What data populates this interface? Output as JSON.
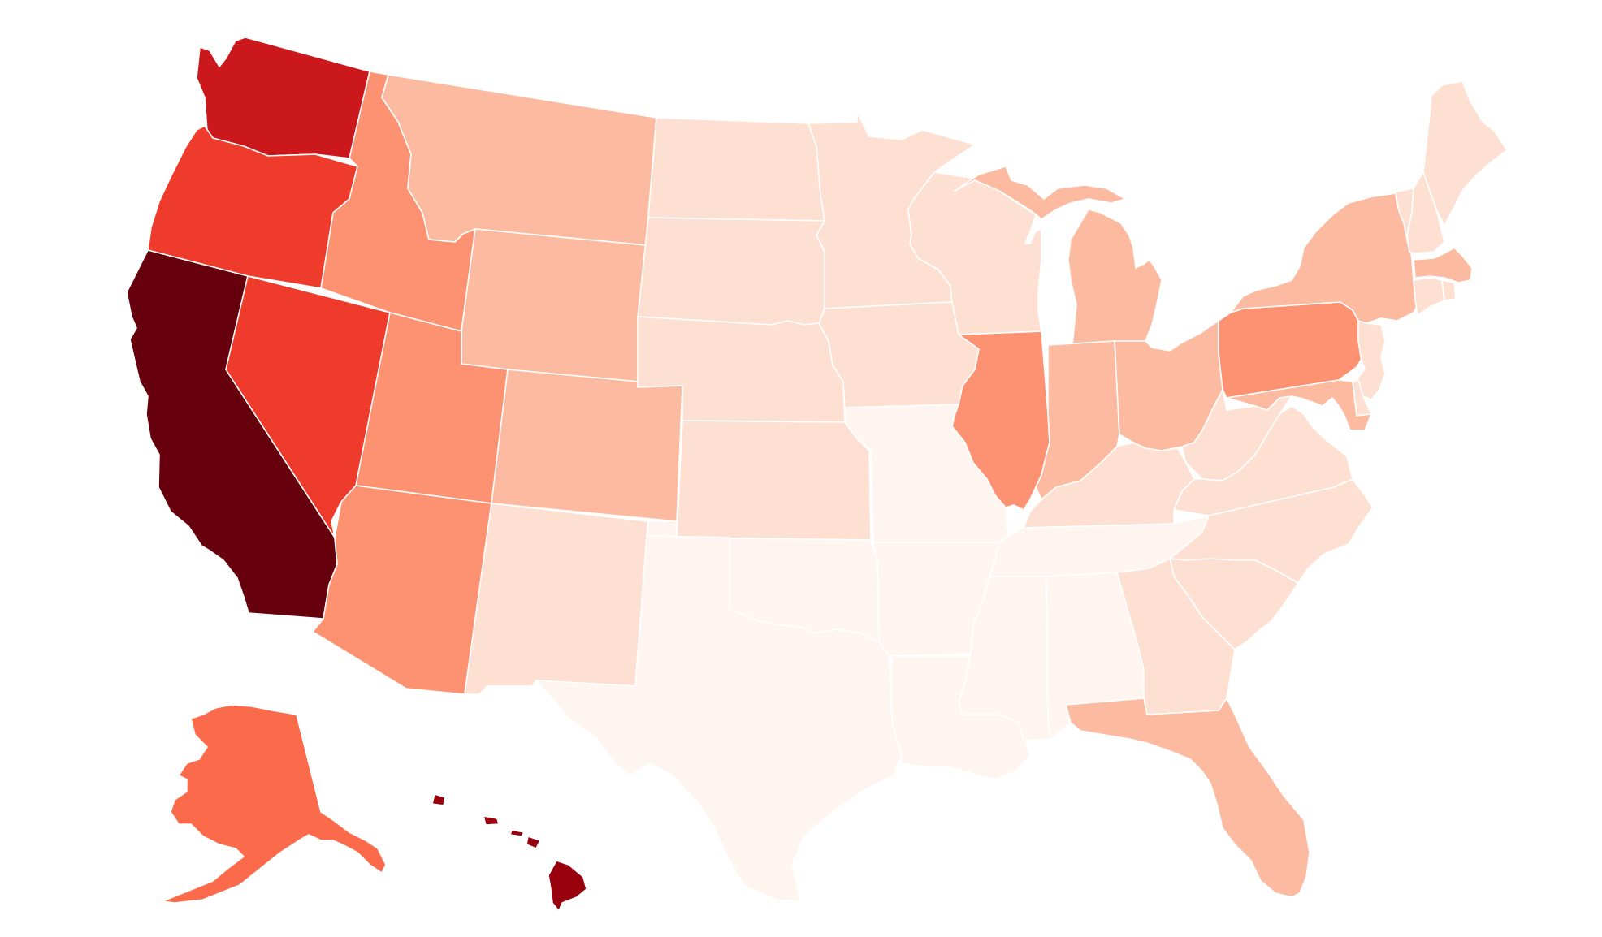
{
  "map": {
    "type": "choropleth",
    "region": "United States",
    "color_scale": [
      "#fff5f0",
      "#fee0d2",
      "#fcbba1",
      "#fc9272",
      "#fb6a4a",
      "#ef3b2c",
      "#cb181d",
      "#99000d",
      "#67000d"
    ],
    "states": [
      {
        "id": "CA",
        "level": 8
      },
      {
        "id": "HI",
        "level": 7
      },
      {
        "id": "WA",
        "level": 6
      },
      {
        "id": "OR",
        "level": 5
      },
      {
        "id": "NV",
        "level": 5
      },
      {
        "id": "AK",
        "level": 4
      },
      {
        "id": "IL",
        "level": 3
      },
      {
        "id": "PA",
        "level": 3
      },
      {
        "id": "ID",
        "level": 3
      },
      {
        "id": "UT",
        "level": 3
      },
      {
        "id": "AZ",
        "level": 3
      },
      {
        "id": "MT",
        "level": 2
      },
      {
        "id": "WY",
        "level": 2
      },
      {
        "id": "CO",
        "level": 2
      },
      {
        "id": "MI",
        "level": 2
      },
      {
        "id": "IN",
        "level": 2
      },
      {
        "id": "OH",
        "level": 2
      },
      {
        "id": "FL",
        "level": 2
      },
      {
        "id": "NY",
        "level": 2
      },
      {
        "id": "MD",
        "level": 2
      },
      {
        "id": "MA",
        "level": 2
      },
      {
        "id": "ND",
        "level": 1
      },
      {
        "id": "SD",
        "level": 1
      },
      {
        "id": "NE",
        "level": 1
      },
      {
        "id": "MN",
        "level": 1
      },
      {
        "id": "IA",
        "level": 1
      },
      {
        "id": "WI",
        "level": 1
      },
      {
        "id": "NM",
        "level": 1
      },
      {
        "id": "KS",
        "level": 1
      },
      {
        "id": "KY",
        "level": 1
      },
      {
        "id": "WV",
        "level": 1
      },
      {
        "id": "VA",
        "level": 1
      },
      {
        "id": "NC",
        "level": 1
      },
      {
        "id": "GA",
        "level": 1
      },
      {
        "id": "SC",
        "level": 1
      },
      {
        "id": "ME",
        "level": 1
      },
      {
        "id": "VT",
        "level": 1
      },
      {
        "id": "NH",
        "level": 1
      },
      {
        "id": "NJ",
        "level": 1
      },
      {
        "id": "CT",
        "level": 1
      },
      {
        "id": "RI",
        "level": 1
      },
      {
        "id": "DE",
        "level": 1
      },
      {
        "id": "MO",
        "level": 0
      },
      {
        "id": "OK",
        "level": 0
      },
      {
        "id": "TX",
        "level": 0
      },
      {
        "id": "AR",
        "level": 0
      },
      {
        "id": "LA",
        "level": 0
      },
      {
        "id": "MS",
        "level": 0
      },
      {
        "id": "AL",
        "level": 0
      },
      {
        "id": "TN",
        "level": 0
      }
    ]
  }
}
